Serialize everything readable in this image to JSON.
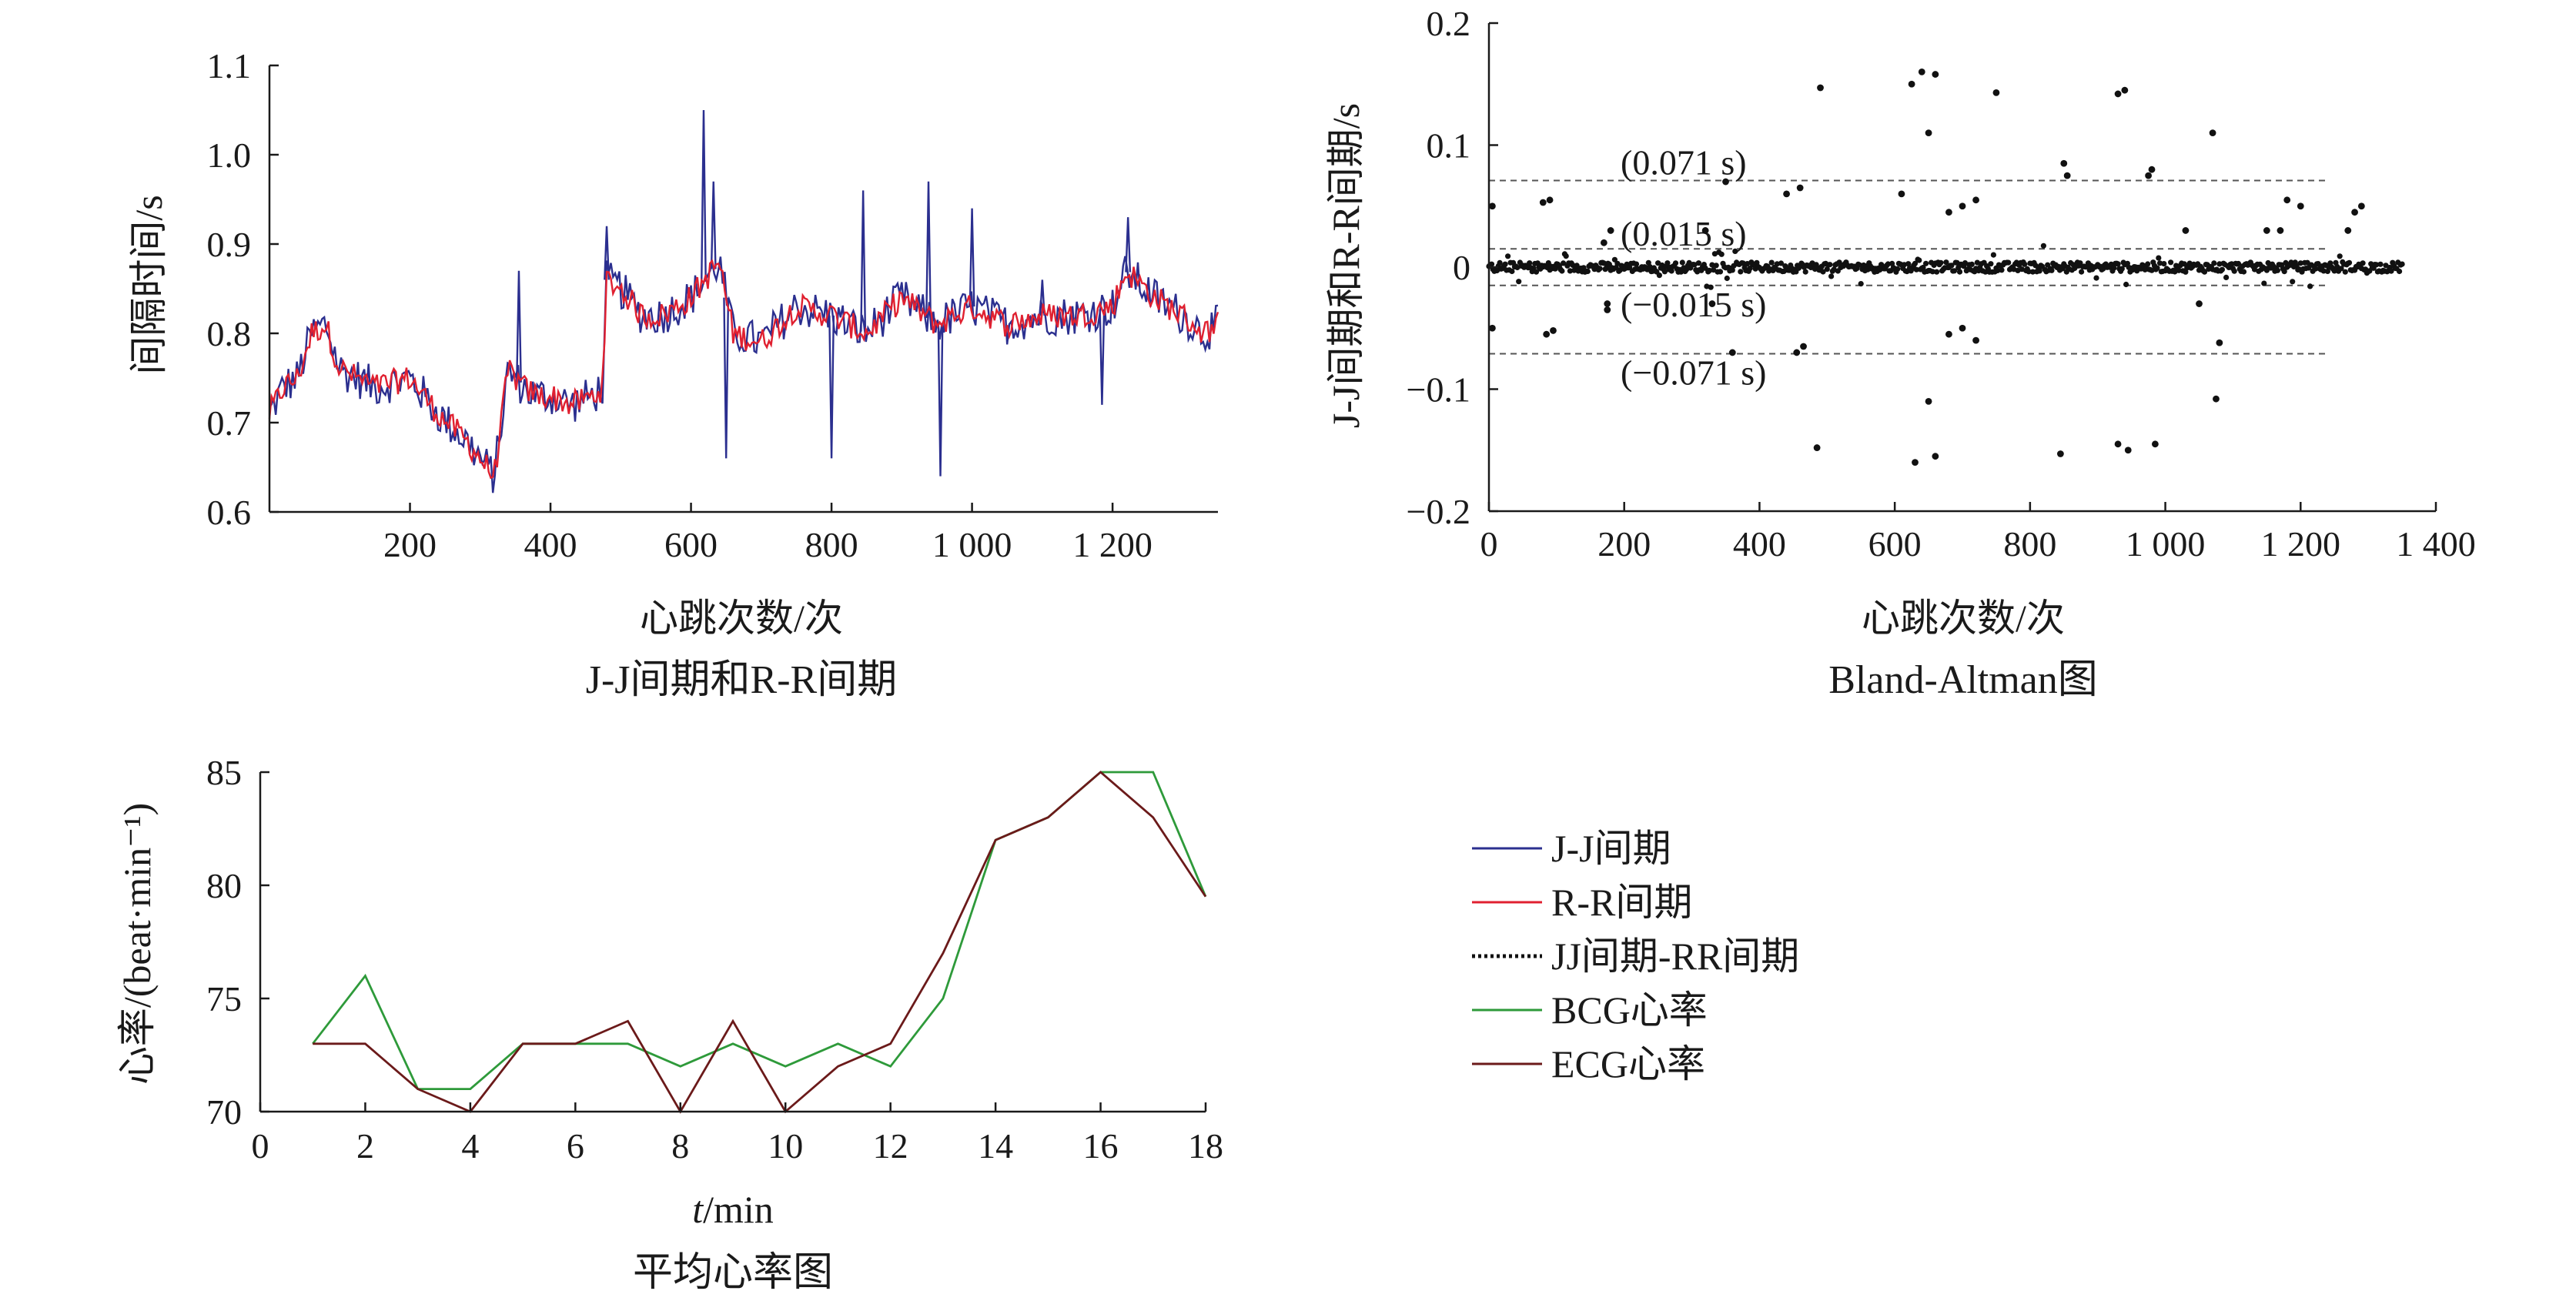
{
  "chart_data": [
    {
      "id": "jj_rr",
      "type": "line",
      "caption": "J-J间期和R-R间期",
      "xlabel": "心跳次数/次",
      "ylabel": "间隔时间/s",
      "xlim": [
        0,
        1350
      ],
      "ylim": [
        0.6,
        1.1
      ],
      "xticks": [
        200,
        400,
        600,
        800,
        1000,
        1200
      ],
      "xtick_labels": [
        "200",
        "400",
        "600",
        "800",
        "1 000",
        "1 200"
      ],
      "yticks": [
        0.6,
        0.7,
        0.8,
        0.9,
        1.0,
        1.1
      ],
      "ytick_labels": [
        "0.6",
        "0.7",
        "0.8",
        "0.9",
        "1.0",
        "1.1"
      ],
      "series": [
        {
          "name": "J-J间期",
          "color": "#2b2f8f",
          "trend_x": [
            0,
            20,
            40,
            60,
            80,
            100,
            150,
            200,
            240,
            280,
            300,
            320,
            340,
            360,
            380,
            400,
            430,
            460,
            475,
            480,
            500,
            530,
            560,
            600,
            620,
            640,
            660,
            700,
            750,
            800,
            850,
            900,
            950,
            1000,
            1050,
            1100,
            1150,
            1200,
            1220,
            1260,
            1300,
            1330,
            1350
          ],
          "trend_y": [
            0.71,
            0.74,
            0.75,
            0.8,
            0.81,
            0.76,
            0.74,
            0.75,
            0.71,
            0.68,
            0.66,
            0.64,
            0.76,
            0.74,
            0.73,
            0.73,
            0.72,
            0.73,
            0.74,
            0.86,
            0.85,
            0.82,
            0.82,
            0.84,
            0.86,
            0.88,
            0.8,
            0.79,
            0.83,
            0.82,
            0.8,
            0.84,
            0.81,
            0.83,
            0.81,
            0.82,
            0.82,
            0.83,
            0.87,
            0.84,
            0.82,
            0.8,
            0.81
          ],
          "spikes_x": [
            355,
            480,
            618,
            632,
            650,
            800,
            845,
            938,
            955,
            1000,
            1100,
            1185,
            1222
          ],
          "spikes_y": [
            0.87,
            0.92,
            1.05,
            0.97,
            0.66,
            0.66,
            0.96,
            0.97,
            0.64,
            0.94,
            0.86,
            0.72,
            0.93
          ]
        },
        {
          "name": "R-R间期",
          "color": "#e02030",
          "trend_x": [
            0,
            20,
            40,
            60,
            80,
            100,
            150,
            200,
            240,
            280,
            300,
            320,
            340,
            360,
            380,
            400,
            430,
            460,
            475,
            480,
            500,
            530,
            560,
            600,
            620,
            640,
            660,
            700,
            750,
            800,
            850,
            900,
            950,
            1000,
            1050,
            1100,
            1150,
            1200,
            1220,
            1260,
            1300,
            1330,
            1350
          ],
          "trend_y": [
            0.71,
            0.74,
            0.75,
            0.8,
            0.81,
            0.76,
            0.74,
            0.75,
            0.71,
            0.68,
            0.66,
            0.64,
            0.76,
            0.74,
            0.73,
            0.73,
            0.72,
            0.73,
            0.74,
            0.86,
            0.85,
            0.82,
            0.82,
            0.84,
            0.86,
            0.88,
            0.8,
            0.79,
            0.83,
            0.82,
            0.8,
            0.84,
            0.81,
            0.83,
            0.81,
            0.82,
            0.82,
            0.83,
            0.87,
            0.84,
            0.82,
            0.8,
            0.81
          ]
        }
      ]
    },
    {
      "id": "bland_altman",
      "type": "scatter",
      "caption": "Bland-Altman图",
      "xlabel": "心跳次数/次",
      "ylabel": "J-J间期和R-R间期/s",
      "xlim": [
        0,
        1400
      ],
      "ylim": [
        -0.2,
        0.2
      ],
      "xticks": [
        0,
        200,
        400,
        600,
        800,
        1000,
        1200,
        1400
      ],
      "xtick_labels": [
        "0",
        "200",
        "400",
        "600",
        "800",
        "1 000",
        "1 200",
        "1 400"
      ],
      "yticks": [
        -0.2,
        -0.1,
        0,
        0.1,
        0.2
      ],
      "ytick_labels": [
        "−0.2",
        "−0.1",
        "0",
        "0.1",
        "0.2"
      ],
      "reference_lines": [
        {
          "y": 0.071,
          "label": "(0.071 s)"
        },
        {
          "y": 0.015,
          "label": "(0.015 s)"
        },
        {
          "y": -0.015,
          "label": "(−0.015 s)"
        },
        {
          "y": -0.071,
          "label": "(−0.071 s)"
        }
      ],
      "reference_xmax": 1240,
      "series": [
        {
          "name": "JJ间期-RR间期",
          "color": "#111111",
          "points": [
            [
              5,
              0.05
            ],
            [
              5,
              -0.05
            ],
            [
              80,
              0.053
            ],
            [
              90,
              0.055
            ],
            [
              85,
              -0.055
            ],
            [
              95,
              -0.052
            ],
            [
              170,
              0.02
            ],
            [
              175,
              -0.03
            ],
            [
              180,
              0.03
            ],
            [
              175,
              -0.035
            ],
            [
              320,
              0.03
            ],
            [
              330,
              -0.03
            ],
            [
              350,
              0.07
            ],
            [
              360,
              -0.07
            ],
            [
              440,
              0.06
            ],
            [
              460,
              0.065
            ],
            [
              465,
              -0.065
            ],
            [
              455,
              -0.07
            ],
            [
              490,
              0.147
            ],
            [
              485,
              -0.148
            ],
            [
              610,
              0.06
            ],
            [
              625,
              0.15
            ],
            [
              640,
              0.16
            ],
            [
              650,
              0.11
            ],
            [
              660,
              0.158
            ],
            [
              630,
              -0.16
            ],
            [
              650,
              -0.11
            ],
            [
              660,
              -0.155
            ],
            [
              680,
              0.045
            ],
            [
              700,
              0.05
            ],
            [
              720,
              0.055
            ],
            [
              680,
              -0.055
            ],
            [
              700,
              -0.05
            ],
            [
              720,
              -0.06
            ],
            [
              750,
              0.143
            ],
            [
              850,
              0.085
            ],
            [
              855,
              0.075
            ],
            [
              845,
              -0.153
            ],
            [
              930,
              0.142
            ],
            [
              940,
              0.145
            ],
            [
              930,
              -0.145
            ],
            [
              945,
              -0.15
            ],
            [
              980,
              0.08
            ],
            [
              975,
              0.075
            ],
            [
              985,
              -0.145
            ],
            [
              1030,
              0.03
            ],
            [
              1050,
              -0.03
            ],
            [
              1070,
              0.11
            ],
            [
              1075,
              -0.108
            ],
            [
              1080,
              -0.062
            ],
            [
              1150,
              0.03
            ],
            [
              1170,
              0.03
            ],
            [
              1180,
              0.055
            ],
            [
              1200,
              0.05
            ],
            [
              1270,
              0.03
            ],
            [
              1280,
              0.045
            ],
            [
              1290,
              0.05
            ]
          ],
          "dense_band": {
            "xmin": 0,
            "xmax": 1350,
            "halfwidth": 0.004
          }
        }
      ]
    },
    {
      "id": "hr",
      "type": "line",
      "caption": "平均心率图",
      "xlabel": "t/min",
      "ylabel": "心率/(beat·min⁻¹)",
      "xlim": [
        0,
        18
      ],
      "ylim": [
        70,
        85
      ],
      "xticks": [
        0,
        2,
        4,
        6,
        8,
        10,
        12,
        14,
        16,
        18
      ],
      "xtick_labels": [
        "0",
        "2",
        "4",
        "6",
        "8",
        "10",
        "12",
        "14",
        "16",
        "18"
      ],
      "yticks": [
        70,
        75,
        80,
        85
      ],
      "ytick_labels": [
        "70",
        "75",
        "80",
        "85"
      ],
      "x": [
        1,
        2,
        3,
        4,
        5,
        6,
        7,
        8,
        9,
        10,
        11,
        12,
        13,
        14,
        15,
        16,
        17,
        18
      ],
      "series": [
        {
          "name": "BCG心率",
          "color": "#2e9a3a",
          "values": [
            73,
            76,
            71,
            71,
            73,
            73,
            73,
            72,
            73,
            72,
            73,
            72,
            75,
            82,
            83,
            85,
            85,
            79.5
          ]
        },
        {
          "name": "ECG心率",
          "color": "#6b1a1a",
          "values": [
            73,
            73,
            71,
            70,
            73,
            73,
            74,
            70,
            74,
            70,
            72,
            73,
            77,
            82,
            83,
            85,
            83,
            79.5
          ]
        }
      ]
    }
  ],
  "legend": [
    {
      "label": "J-J间期",
      "color": "#2b2f8f",
      "style": "solid"
    },
    {
      "label": "R-R间期",
      "color": "#e02030",
      "style": "solid"
    },
    {
      "label": "JJ间期-RR间期",
      "color": "#111111",
      "style": "dotted"
    },
    {
      "label": "BCG心率",
      "color": "#2e9a3a",
      "style": "solid"
    },
    {
      "label": "ECG心率",
      "color": "#6b1a1a",
      "style": "solid"
    }
  ]
}
